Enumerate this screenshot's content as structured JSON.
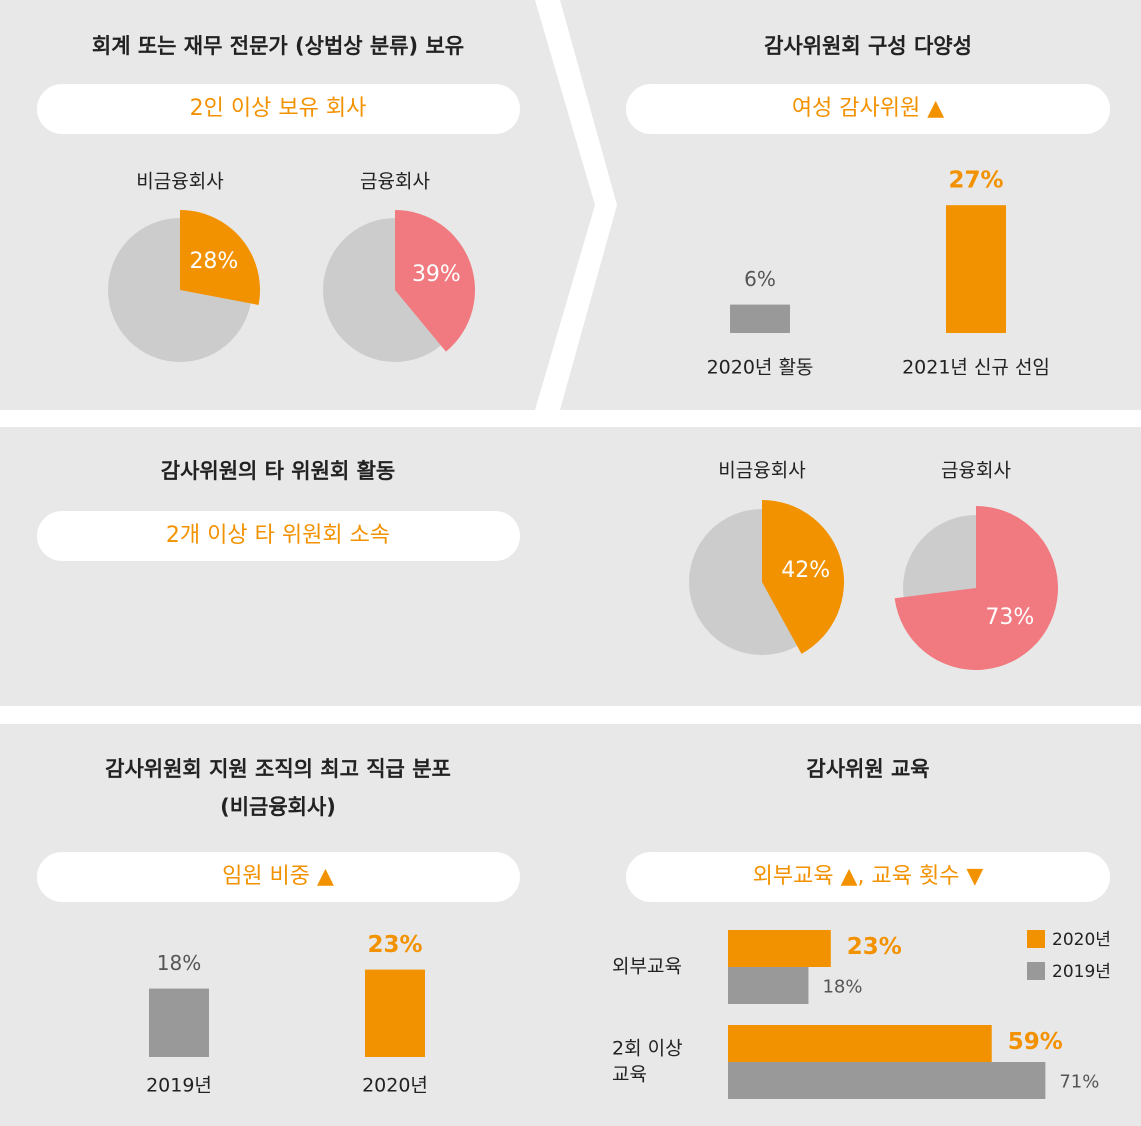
{
  "chart_data": [
    {
      "type": "pie",
      "title": "회계 또는 재무 전문가 (상법상 분류) 보유",
      "subtitle": "2인 이상 보유 회사",
      "categories": [
        "비금융회사",
        "금융회사"
      ],
      "values": [
        28,
        39
      ],
      "value_labels": [
        "28%",
        "39%"
      ],
      "colors": [
        "#f39200",
        "#f07a7f"
      ],
      "background_color": "#cccccc"
    },
    {
      "type": "bar",
      "title": "감사위원회 구성 다양성",
      "subtitle": "여성 감사위원 ▲",
      "categories": [
        "2020년 활동",
        "2021년 신규 선임"
      ],
      "values": [
        6,
        27
      ],
      "value_labels": [
        "6%",
        "27%"
      ],
      "colors": [
        "#999999",
        "#f39200"
      ],
      "ylim": [
        0,
        30
      ]
    },
    {
      "type": "pie",
      "title": "감사위원의 타 위원회 활동",
      "subtitle": "2개 이상 타 위원회 소속",
      "categories": [
        "비금융회사",
        "금융회사"
      ],
      "values": [
        42,
        73
      ],
      "value_labels": [
        "42%",
        "73%"
      ],
      "colors": [
        "#f39200",
        "#f07a7f"
      ],
      "background_color": "#cccccc"
    },
    {
      "type": "bar",
      "title": [
        "감사위원회 지원 조직의 최고 직급 분포",
        "(비금융회사)"
      ],
      "subtitle": "임원 비중 ▲",
      "categories": [
        "2019년",
        "2020년"
      ],
      "values": [
        18,
        23
      ],
      "value_labels": [
        "18%",
        "23%"
      ],
      "colors": [
        "#999999",
        "#f39200"
      ],
      "ylim": [
        0,
        30
      ]
    },
    {
      "type": "hbar",
      "title": "감사위원 교육",
      "subtitle": "외부교육 ▲, 교육 횟수 ▼",
      "categories": [
        "외부교육",
        [
          "2회 이상",
          "교육"
        ]
      ],
      "series": [
        {
          "name": "2020년",
          "color": "#f39200",
          "values": [
            23,
            59
          ],
          "value_labels": [
            "23%",
            "59%"
          ]
        },
        {
          "name": "2019년",
          "color": "#999999",
          "values": [
            18,
            71
          ],
          "value_labels": [
            "18%",
            "71%"
          ]
        }
      ],
      "xlim": [
        0,
        100
      ],
      "legend": "top-right"
    }
  ]
}
